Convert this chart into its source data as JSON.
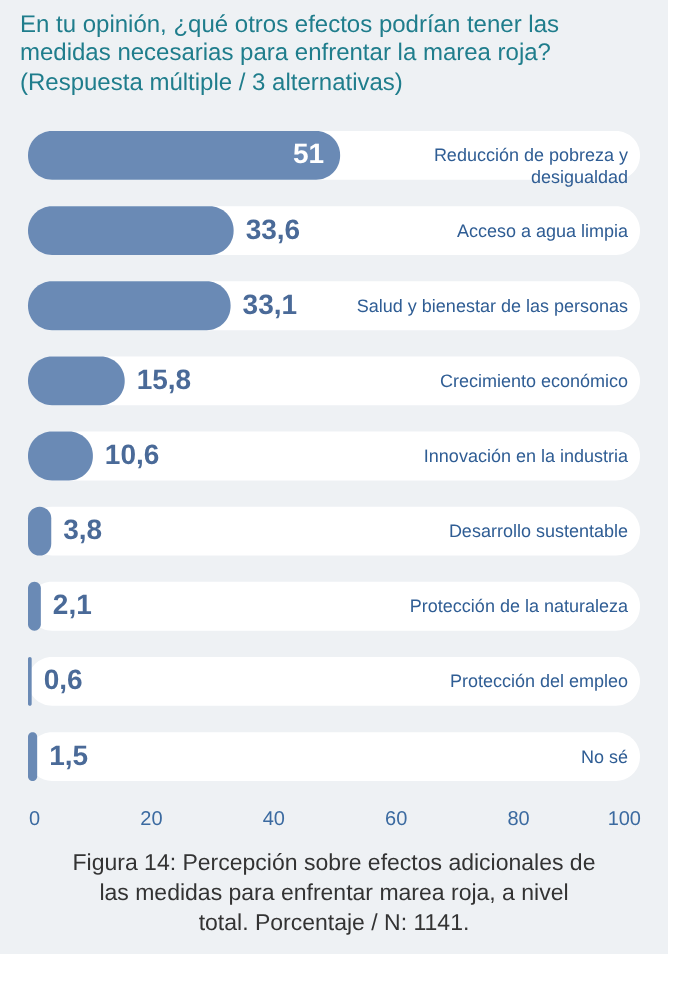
{
  "chart_data": {
    "type": "bar",
    "orientation": "horizontal",
    "title": "En tu opinión, ¿qué otros efectos podrían tener las medidas necesarias para enfrentar la marea roja?",
    "subtitle": "(Respuesta múltiple / 3 alternativas)",
    "categories": [
      "Reducción de pobreza y desigualdad",
      "Acceso a agua limpia",
      "Salud y bienestar de las personas",
      "Crecimiento económico",
      "Innovación en la industria",
      "Desarrollo sustentable",
      "Protección de la naturaleza",
      "Protección del empleo",
      "No sé"
    ],
    "values": [
      51,
      33.6,
      33.1,
      15.8,
      10.6,
      3.8,
      2.1,
      0.6,
      1.5
    ],
    "value_labels": [
      "51",
      "33,6",
      "33,1",
      "15,8",
      "10,6",
      "3,8",
      "2,1",
      "0,6",
      "1,5"
    ],
    "color": "#6a8ab5",
    "xlim": [
      0,
      100
    ],
    "xticks": [
      0,
      20,
      40,
      60,
      80,
      100
    ],
    "grid": false,
    "annotations": [
      "Figura 14: Percepción sobre efectos adicionales de las medidas para enfrentar marea roja, a nivel total. Porcentaje / N: 1141."
    ]
  }
}
